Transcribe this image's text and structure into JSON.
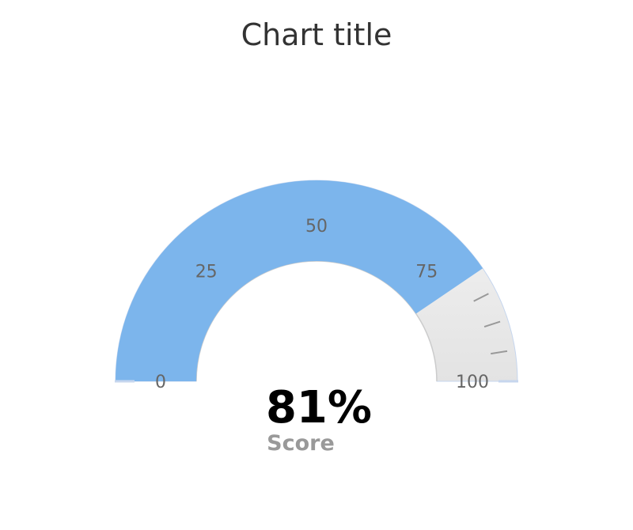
{
  "chart_data": {
    "type": "gauge",
    "title": "Chart title",
    "min": 0,
    "max": 100,
    "value": 81,
    "value_display": "81%",
    "series_label": "Score",
    "ticks": [
      0,
      25,
      50,
      75,
      100
    ],
    "tick_labels": [
      "0",
      "25",
      "50",
      "75",
      "100"
    ],
    "minor_ticks": [
      85,
      90,
      95
    ],
    "colors": {
      "fill": "#7cb5ec",
      "background_light": "#f4f4f4",
      "background_dark": "#e3e3e3",
      "inner_border": "#cccccc",
      "minor_tick": "#999999",
      "end_tick": "#c6d6ee"
    }
  }
}
